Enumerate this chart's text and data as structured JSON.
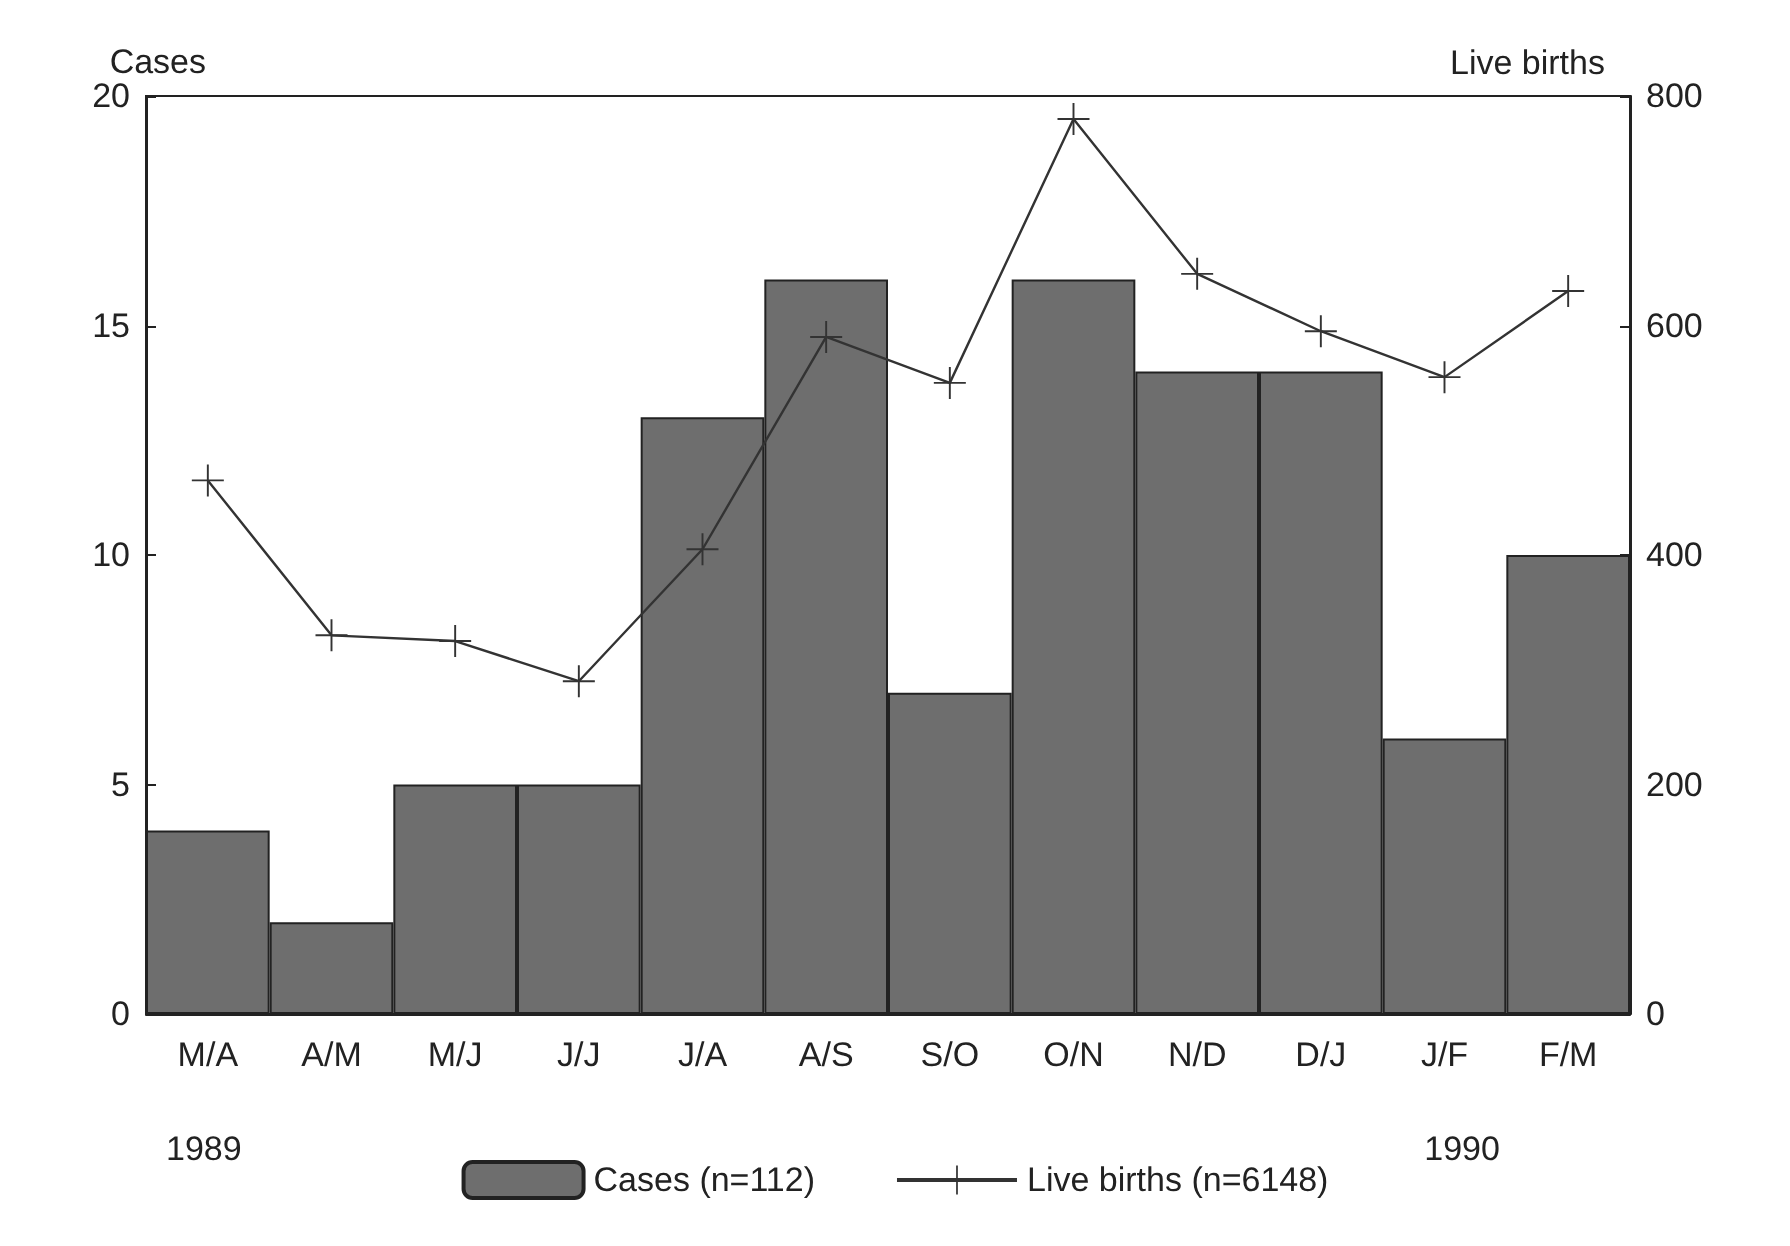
{
  "chart_data": {
    "type": "bar",
    "categories": [
      "M/A",
      "A/M",
      "M/J",
      "J/J",
      "J/A",
      "A/S",
      "S/O",
      "O/N",
      "N/D",
      "D/J",
      "J/F",
      "F/M"
    ],
    "ylabel": "Cases",
    "y2label": "Live births",
    "ylim": [
      0,
      20
    ],
    "yticks": [
      0,
      5,
      10,
      15,
      20
    ],
    "y2lim": [
      0,
      800
    ],
    "y2ticks": [
      0,
      200,
      400,
      600,
      800
    ],
    "series": [
      {
        "name": "Cases (n=112)",
        "color": "#6e6e6e",
        "values": [
          4,
          2,
          5,
          5,
          13,
          16,
          7,
          16,
          14,
          14,
          6,
          10
        ]
      },
      {
        "name": "Live births (n=6148)",
        "type": "line",
        "axis": "y2",
        "color": "#333333",
        "marker": "cross",
        "values": [
          465,
          330,
          325,
          290,
          405,
          590,
          550,
          780,
          645,
          595,
          555,
          630
        ]
      }
    ],
    "annotations": [
      "1989",
      "1990"
    ],
    "legend": "bottom",
    "grid": false
  }
}
